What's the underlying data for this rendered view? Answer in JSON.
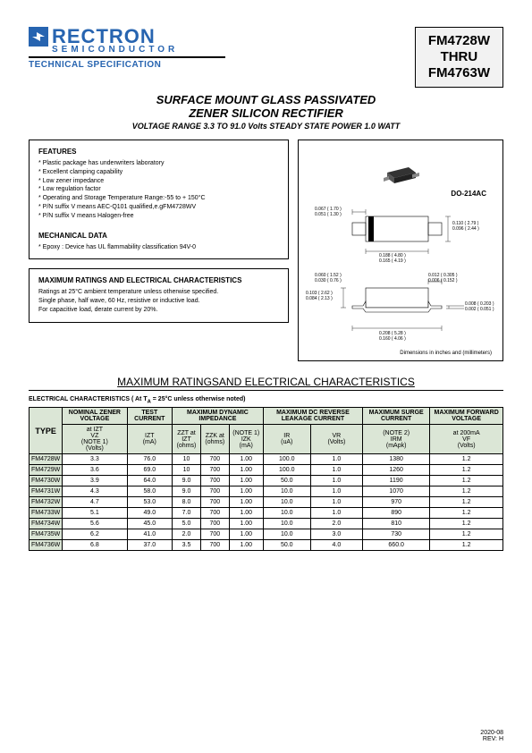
{
  "header": {
    "logo_main": "RECTRON",
    "logo_sub": "SEMICONDUCTOR",
    "tech_spec": "TECHNICAL SPECIFICATION",
    "part_top": "FM4728W",
    "part_mid": "THRU",
    "part_bot": "FM4763W"
  },
  "title": {
    "line1": "SURFACE MOUNT GLASS PASSIVATED",
    "line2": "ZENER SILICON RECTIFIER",
    "sub": "VOLTAGE RANGE 3.3 TO 91.0 Volts  STEADY STATE POWER 1.0 WATT"
  },
  "features": {
    "heading": "FEATURES",
    "items": [
      "Plastic package has underwriters laboratory",
      "Excellent clamping capability",
      "Low zener impedance",
      "Low regulation factor",
      "Operating and Storage Temperature Range:-55 to + 150°C",
      "P/N suffix V means AEC-Q101 qualified,e.gFM4728WV",
      "P/N suffix V means Halogen-free"
    ],
    "mech_heading": "MECHANICAL DATA",
    "mech_item": "Epoxy : Device has UL flammability classification 94V-0"
  },
  "ratings_box": {
    "heading": "MAXIMUM RATINGS AND ELECTRICAL CHARACTERISTICS",
    "line1": "Ratings at 25°C ambient temperature unless otherwise specified.",
    "line2": "Single phase, half wave, 60 Hz, resistive or inductive load.",
    "line3": "For capacitive load, derate current by 20%."
  },
  "diagram": {
    "pkg": "DO-214AC",
    "d1": "0.067 ( 1.70 )",
    "d1b": "0.051 ( 1.30 )",
    "d2": "0.110 ( 2.79 )",
    "d2b": "0.096 ( 2.44 )",
    "d3": "0.188 ( 4.80 )",
    "d3b": "0.165 ( 4.19 )",
    "d4": "0.012 ( 0.305 )",
    "d4b": "0.006 ( 0.152 )",
    "d5": "0.060 ( 1.52 )",
    "d5b": "0.030 ( 0.76 )",
    "d6": "0.103 ( 2.62 )",
    "d6b": "0.084 ( 2.13 )",
    "d7": "0.008 ( 0.203 )",
    "d7b": "0.002 ( 0.051 )",
    "d8": "0.208 ( 5.28 )",
    "d8b": "0.160 ( 4.06 )",
    "caption": "Dimensions in inches and (millimeters)"
  },
  "section_title": "MAXIMUM RATINGSAND ELECTRICAL CHARACTERISTICS",
  "elec_heading": "ELECTRICAL CHARACTERISTICS ( At T",
  "elec_heading_sub": "A",
  "elec_heading_tail": " = 25°C unless otherwise noted)",
  "table": {
    "group_headers": [
      "NOMINAL ZENER VOLTAGE",
      "TEST CURRENT",
      "MAXIMUM DYNAMIC IMPEDANCE",
      "MAXIMUM DC REVERSE LEAKAGE CURRENT",
      "MAXIMUM SURGE CURRENT",
      "MAXIMUM FORWARD VOLTAGE"
    ],
    "type_label": "TYPE",
    "sub_headers": [
      "at IZT\nVZ\n(NOTE 1)\n(Volts)",
      "IZT\n(mA)",
      "ZZT at\nIZT\n(ohms)",
      "ZZK at\n(ohms)",
      "(NOTE 1)\nIZK\n(mA)",
      "IR\n(uA)",
      "VR\n(Volts)",
      "(NOTE 2)\nIRM\n(mApk)",
      "at 200mA\nVF\n(Volts)"
    ],
    "rows": [
      [
        "FM4728W",
        "3.3",
        "76.0",
        "10",
        "700",
        "1.00",
        "100.0",
        "1.0",
        "1380",
        "1.2"
      ],
      [
        "FM4729W",
        "3.6",
        "69.0",
        "10",
        "700",
        "1.00",
        "100.0",
        "1.0",
        "1260",
        "1.2"
      ],
      [
        "FM4730W",
        "3.9",
        "64.0",
        "9.0",
        "700",
        "1.00",
        "50.0",
        "1.0",
        "1190",
        "1.2"
      ],
      [
        "FM4731W",
        "4.3",
        "58.0",
        "9.0",
        "700",
        "1.00",
        "10.0",
        "1.0",
        "1070",
        "1.2"
      ],
      [
        "FM4732W",
        "4.7",
        "53.0",
        "8.0",
        "700",
        "1.00",
        "10.0",
        "1.0",
        "970",
        "1.2"
      ],
      [
        "FM4733W",
        "5.1",
        "49.0",
        "7.0",
        "700",
        "1.00",
        "10.0",
        "1.0",
        "890",
        "1.2"
      ],
      [
        "FM4734W",
        "5.6",
        "45.0",
        "5.0",
        "700",
        "1.00",
        "10.0",
        "2.0",
        "810",
        "1.2"
      ],
      [
        "FM4735W",
        "6.2",
        "41.0",
        "2.0",
        "700",
        "1.00",
        "10.0",
        "3.0",
        "730",
        "1.2"
      ],
      [
        "FM4736W",
        "6.8",
        "37.0",
        "3.5",
        "700",
        "1.00",
        "50.0",
        "4.0",
        "660.0",
        "1.2"
      ]
    ]
  },
  "footer": {
    "date": "2020-08",
    "rev": "REV: H"
  },
  "colors": {
    "brand_blue": "#2764b0",
    "header_bg": "#dbe6d6"
  }
}
